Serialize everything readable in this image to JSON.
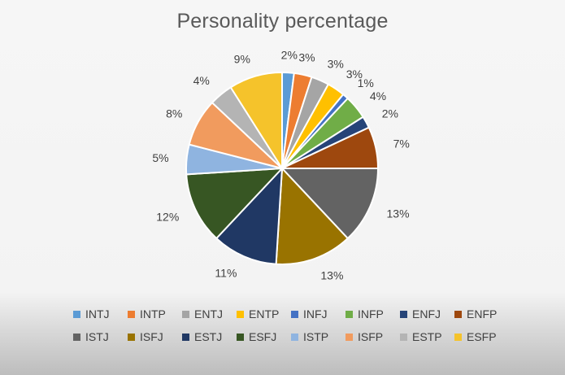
{
  "chart_data": {
    "type": "pie",
    "title": "Personality percentage",
    "categories": [
      "INTJ",
      "INTP",
      "ENTJ",
      "ENTP",
      "INFJ",
      "INFP",
      "ENFJ",
      "ENFP",
      "ISTJ",
      "ISFJ",
      "ESTJ",
      "ESFJ",
      "ISTP",
      "ISFP",
      "ESTP",
      "ESFP"
    ],
    "values": [
      2,
      3,
      3,
      3,
      1,
      4,
      2,
      7,
      13,
      13,
      11,
      12,
      5,
      8,
      4,
      9
    ],
    "labels": [
      "2%",
      "3%",
      "3%",
      "3%",
      "1%",
      "4%",
      "2%",
      "7%",
      "13%",
      "13%",
      "11%",
      "12%",
      "5%",
      "8%",
      "4%",
      "9%"
    ],
    "colors": [
      "#5B9BD5",
      "#ED7D31",
      "#A5A5A5",
      "#FFC000",
      "#4472C4",
      "#70AD47",
      "#264478",
      "#9E480E",
      "#636363",
      "#997300",
      "#203864",
      "#375623",
      "#8FB4E0",
      "#F19B5E",
      "#B4B4B4",
      "#F5C32B"
    ],
    "legend_position": "bottom"
  }
}
